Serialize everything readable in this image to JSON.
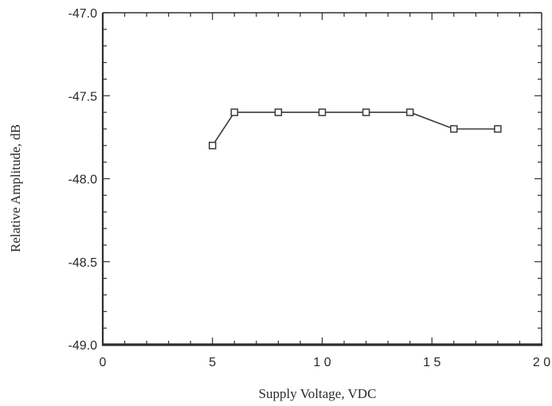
{
  "chart_data": {
    "type": "line",
    "title": "",
    "xlabel": "Supply Voltage, VDC",
    "ylabel": "Relative Amplitude, dB",
    "xlim": [
      0,
      20
    ],
    "ylim": [
      -49.0,
      -47.0
    ],
    "x_ticks": [
      0,
      5,
      10,
      15,
      20
    ],
    "x_tick_labels": [
      "0",
      "5",
      "1 0",
      "1 5",
      "2 0"
    ],
    "y_ticks": [
      -47.0,
      -47.5,
      -48.0,
      -48.5,
      -49.0
    ],
    "y_tick_labels": [
      "-47.0",
      "-47.5",
      "-48.0",
      "-48.5",
      "-49.0"
    ],
    "grid": false,
    "marker": "open-square",
    "line_color": "#3a3a3a",
    "series": [
      {
        "x": [
          5,
          6,
          8,
          10,
          12,
          14,
          16,
          18
        ],
        "y": [
          -47.8,
          -47.6,
          -47.6,
          -47.6,
          -47.6,
          -47.6,
          -47.7,
          -47.7
        ]
      }
    ]
  }
}
